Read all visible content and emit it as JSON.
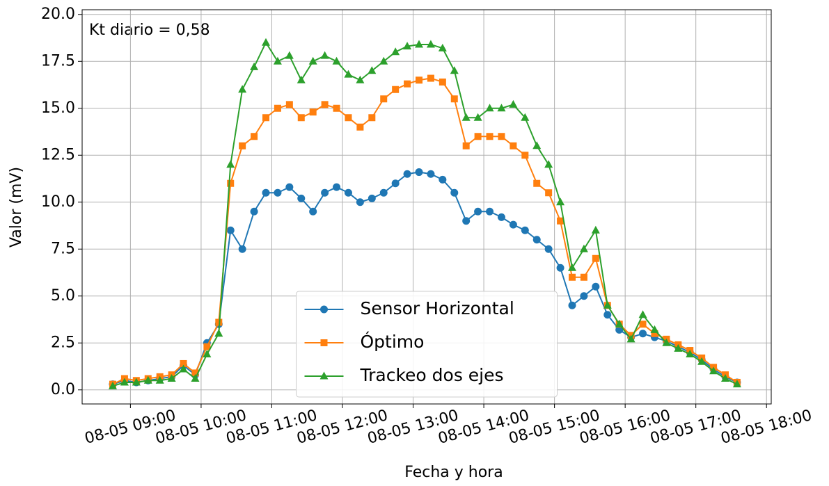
{
  "chart_data": {
    "type": "line",
    "xlabel": "Fecha y hora",
    "ylabel": "Valor (mV)",
    "annotation": "Kt diario = 0,58",
    "x": [
      "08-05 08:45",
      "08-05 08:55",
      "08-05 09:05",
      "08-05 09:15",
      "08-05 09:25",
      "08-05 09:35",
      "08-05 09:45",
      "08-05 09:55",
      "08-05 10:05",
      "08-05 10:15",
      "08-05 10:25",
      "08-05 10:35",
      "08-05 10:45",
      "08-05 10:55",
      "08-05 11:05",
      "08-05 11:15",
      "08-05 11:25",
      "08-05 11:35",
      "08-05 11:45",
      "08-05 11:55",
      "08-05 12:05",
      "08-05 12:15",
      "08-05 12:25",
      "08-05 12:35",
      "08-05 12:45",
      "08-05 12:55",
      "08-05 13:05",
      "08-05 13:15",
      "08-05 13:25",
      "08-05 13:35",
      "08-05 13:45",
      "08-05 13:55",
      "08-05 14:05",
      "08-05 14:15",
      "08-05 14:25",
      "08-05 14:35",
      "08-05 14:45",
      "08-05 14:55",
      "08-05 15:05",
      "08-05 15:15",
      "08-05 15:25",
      "08-05 15:35",
      "08-05 15:45",
      "08-05 15:55",
      "08-05 16:05",
      "08-05 16:15",
      "08-05 16:25",
      "08-05 16:35",
      "08-05 16:45",
      "08-05 16:55",
      "08-05 17:05",
      "08-05 17:15",
      "08-05 17:25",
      "08-05 17:35"
    ],
    "series": [
      {
        "name": "Sensor Horizontal",
        "color": "#1f77b4",
        "marker": "circle",
        "values": [
          0.3,
          0.5,
          0.4,
          0.5,
          0.6,
          0.7,
          1.3,
          0.8,
          2.5,
          3.5,
          8.5,
          7.5,
          9.5,
          10.5,
          10.5,
          10.8,
          10.2,
          9.5,
          10.5,
          10.8,
          10.5,
          10.0,
          10.2,
          10.5,
          11.0,
          11.5,
          11.6,
          11.5,
          11.2,
          10.5,
          9.0,
          9.5,
          9.5,
          9.2,
          8.8,
          8.5,
          8.0,
          7.5,
          6.5,
          4.5,
          5.0,
          5.5,
          4.0,
          3.2,
          2.8,
          3.0,
          2.8,
          2.6,
          2.3,
          2.0,
          1.6,
          1.1,
          0.7,
          0.4
        ]
      },
      {
        "name": "Óptimo",
        "color": "#ff7f0e",
        "marker": "square",
        "values": [
          0.3,
          0.6,
          0.5,
          0.6,
          0.7,
          0.8,
          1.4,
          0.9,
          2.3,
          3.6,
          11,
          13,
          13.5,
          14.5,
          15,
          15.2,
          14.5,
          14.8,
          15.2,
          15,
          14.5,
          14,
          14.5,
          15.5,
          16,
          16.3,
          16.5,
          16.6,
          16.4,
          15.5,
          13,
          13.5,
          13.5,
          13.5,
          13,
          12.5,
          11,
          10.5,
          9,
          6,
          6,
          7,
          4.5,
          3.5,
          2.9,
          3.5,
          3.0,
          2.7,
          2.4,
          2.1,
          1.7,
          1.2,
          0.8,
          0.4
        ]
      },
      {
        "name": "Trackeo dos ejes",
        "color": "#2ca02c",
        "marker": "triangle",
        "values": [
          0.2,
          0.4,
          0.4,
          0.5,
          0.5,
          0.6,
          1.1,
          0.6,
          1.9,
          3.0,
          12,
          16,
          17.2,
          18.5,
          17.5,
          17.8,
          16.5,
          17.5,
          17.8,
          17.5,
          16.8,
          16.5,
          17,
          17.5,
          18,
          18.3,
          18.4,
          18.4,
          18.2,
          17,
          14.5,
          14.5,
          15.0,
          15,
          15.2,
          14.5,
          13,
          12,
          10,
          6.5,
          7.5,
          8.5,
          4.5,
          3.5,
          2.7,
          4,
          3.2,
          2.5,
          2.2,
          1.9,
          1.5,
          1.0,
          0.6,
          0.3
        ]
      }
    ],
    "xlim": [
      "08-05 08:19",
      "08-05 18:04"
    ],
    "xticks": [
      "08-05 09:00",
      "08-05 10:00",
      "08-05 11:00",
      "08-05 12:00",
      "08-05 13:00",
      "08-05 14:00",
      "08-05 15:00",
      "08-05 16:00",
      "08-05 17:00",
      "08-05 18:00"
    ],
    "ylim": [
      -0.75,
      20.25
    ],
    "yticks": [
      {
        "value": 0,
        "label": "0.0"
      },
      {
        "value": 2.5,
        "label": "2.5"
      },
      {
        "value": 5,
        "label": "5.0"
      },
      {
        "value": 7.5,
        "label": "7.5"
      },
      {
        "value": 10,
        "label": "10.0"
      },
      {
        "value": 12.5,
        "label": "12.5"
      },
      {
        "value": 15,
        "label": "15.0"
      },
      {
        "value": 17.5,
        "label": "17.5"
      },
      {
        "value": 20,
        "label": "20.0"
      }
    ],
    "grid": true,
    "legend": "lower center"
  }
}
